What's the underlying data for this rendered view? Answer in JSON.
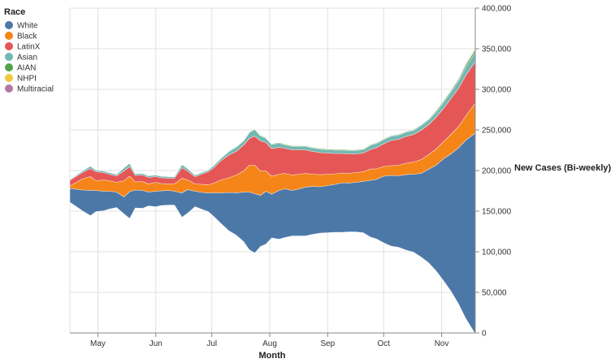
{
  "chart_data": {
    "type": "area",
    "stacking": "center",
    "legend": {
      "title": "Race",
      "placement": "top-left"
    },
    "xlabel": "Month",
    "ylabel": "New Cases (Bi-weekly)",
    "x_tick_labels": [
      "May",
      "Jun",
      "Jul",
      "Aug",
      "Sep",
      "Oct",
      "Nov"
    ],
    "y_tick_labels": [
      "0",
      "50,000",
      "100,000",
      "150,000",
      "200,000",
      "250,000",
      "300,000",
      "350,000",
      "400,000"
    ],
    "y_axis_side": "right",
    "xlim": [
      "2020-04-16",
      "2020-11-19"
    ],
    "ylim": [
      0,
      400000
    ],
    "grid": true,
    "x": [
      "2020-04-16",
      "2020-04-23",
      "2020-04-27",
      "2020-04-30",
      "2020-05-04",
      "2020-05-07",
      "2020-05-11",
      "2020-05-15",
      "2020-05-18",
      "2020-05-21",
      "2020-05-25",
      "2020-05-28",
      "2020-06-01",
      "2020-06-04",
      "2020-06-08",
      "2020-06-11",
      "2020-06-15",
      "2020-06-18",
      "2020-06-22",
      "2020-06-26",
      "2020-06-29",
      "2020-07-02",
      "2020-07-06",
      "2020-07-10",
      "2020-07-14",
      "2020-07-18",
      "2020-07-21",
      "2020-07-24",
      "2020-07-27",
      "2020-07-30",
      "2020-08-02",
      "2020-08-06",
      "2020-08-09",
      "2020-08-13",
      "2020-08-17",
      "2020-08-20",
      "2020-08-24",
      "2020-08-28",
      "2020-09-01",
      "2020-09-05",
      "2020-09-09",
      "2020-09-12",
      "2020-09-16",
      "2020-09-20",
      "2020-09-24",
      "2020-09-27",
      "2020-10-01",
      "2020-10-05",
      "2020-10-09",
      "2020-10-13",
      "2020-10-17",
      "2020-10-21",
      "2020-10-25",
      "2020-10-29",
      "2020-11-02",
      "2020-11-06",
      "2020-11-10",
      "2020-11-14",
      "2020-11-19"
    ],
    "series": [
      {
        "name": "White",
        "color": "#4c78a8",
        "values": [
          17,
          26,
          31,
          26,
          24,
          22,
          19,
          21,
          33,
          22,
          22,
          17,
          19,
          18,
          18,
          17,
          30,
          29,
          19,
          21,
          23,
          29,
          38,
          47,
          52,
          61,
          71,
          73,
          63,
          65,
          54,
          60,
          60,
          56,
          58,
          60,
          59,
          57,
          58,
          59,
          61,
          60,
          61,
          63,
          70,
          73,
          82,
          87,
          88,
          93,
          96,
          103,
          115,
          130,
          150,
          169,
          192,
          220,
          247
        ]
      },
      {
        "name": "Black",
        "color": "#f58518",
        "values": [
          3,
          14,
          17,
          12,
          14,
          13,
          12,
          20,
          19,
          10,
          11,
          10,
          11,
          9,
          8,
          9,
          18,
          12,
          9,
          10,
          10,
          12,
          16,
          18,
          22,
          26,
          33,
          35,
          30,
          25,
          22,
          20,
          19,
          19,
          18,
          17,
          15,
          15,
          14,
          13,
          12,
          12,
          12,
          12,
          14,
          13,
          12,
          12,
          13,
          14,
          15,
          17,
          18,
          20,
          21,
          24,
          26,
          30,
          37
        ]
      },
      {
        "name": "LatinX",
        "color": "#e45756",
        "values": [
          7,
          8,
          10,
          11,
          9,
          8,
          8,
          12,
          12,
          8,
          8,
          8,
          7,
          7,
          7,
          7,
          13,
          11,
          9,
          13,
          16,
          19,
          24,
          28,
          29,
          32,
          33,
          36,
          37,
          35,
          34,
          33,
          31,
          31,
          30,
          29,
          28,
          27,
          26,
          25,
          24,
          24,
          23,
          23,
          24,
          26,
          28,
          31,
          32,
          33,
          34,
          36,
          37,
          39,
          41,
          44,
          47,
          50,
          51
        ]
      },
      {
        "name": "Asian",
        "color": "#72b7b2",
        "values": [
          1,
          2,
          3,
          2,
          2,
          2,
          2,
          4,
          4,
          2,
          2,
          2,
          2,
          2,
          2,
          2,
          4,
          3,
          2,
          2,
          2,
          3,
          3,
          4,
          5,
          5,
          7,
          8,
          6,
          5,
          5,
          5,
          4,
          4,
          4,
          4,
          4,
          4,
          4,
          4,
          4,
          4,
          4,
          4,
          5,
          5,
          5,
          5,
          5,
          5,
          5,
          6,
          6,
          6,
          7,
          8,
          9,
          10,
          12
        ]
      },
      {
        "name": "AIAN",
        "color": "#54a24b",
        "values": [
          0,
          0,
          0,
          0,
          0,
          0,
          0,
          0,
          0,
          0,
          0,
          0,
          0,
          0,
          0,
          0,
          0,
          0,
          0,
          0,
          0,
          0,
          0,
          1,
          1,
          1,
          1,
          1,
          1,
          1,
          1,
          1,
          1,
          1,
          1,
          1,
          1,
          1,
          1,
          1,
          1,
          1,
          1,
          1,
          1,
          1,
          1,
          1,
          1,
          1,
          1,
          1,
          1,
          2,
          2,
          2,
          2,
          3,
          3
        ]
      },
      {
        "name": "NHPI",
        "color": "#eeca3b",
        "values": [
          0,
          0,
          0,
          0,
          0,
          0,
          0,
          0,
          0,
          0,
          0,
          0,
          0,
          0,
          0,
          0,
          0,
          0,
          0,
          0,
          0,
          0,
          0,
          0,
          0,
          0,
          0,
          0,
          0,
          0,
          0,
          0,
          0,
          0,
          0,
          0,
          0,
          0,
          0,
          0,
          0,
          0,
          0,
          0,
          0,
          0,
          0,
          0,
          0,
          0,
          0,
          0,
          0,
          0,
          0,
          0,
          1,
          1,
          1
        ]
      },
      {
        "name": "Multiracial",
        "color": "#b279a2",
        "values": [
          0,
          0,
          0,
          0,
          0,
          0,
          0,
          0,
          0,
          0,
          0,
          0,
          0,
          0,
          0,
          0,
          0,
          0,
          0,
          0,
          0,
          0,
          0,
          0,
          0,
          0,
          0,
          0,
          0,
          0,
          0,
          0,
          0,
          0,
          0,
          0,
          0,
          0,
          0,
          0,
          0,
          0,
          0,
          0,
          0,
          0,
          0,
          0,
          0,
          0,
          0,
          0,
          0,
          0,
          0,
          0,
          1,
          1,
          1
        ]
      }
    ],
    "series_units": "thousands of new cases"
  }
}
